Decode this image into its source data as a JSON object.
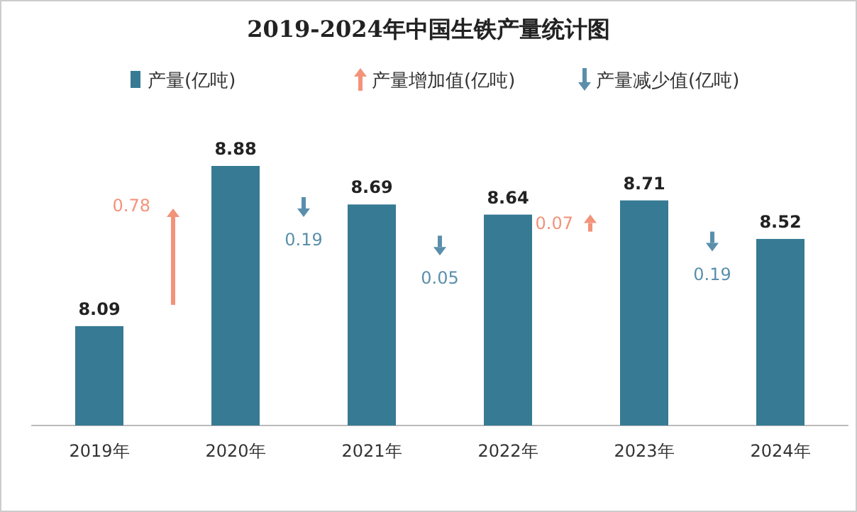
{
  "chart_data": {
    "type": "bar",
    "title": "2019-2024年中国生铁产量统计图",
    "categories": [
      "2019年",
      "2020年",
      "2021年",
      "2022年",
      "2023年",
      "2024年"
    ],
    "ylim": [
      7.6,
      8.88
    ],
    "grid": false,
    "legend": "top",
    "data_labels": true,
    "series": [
      {
        "name": "产量(亿吨)",
        "type": "bar",
        "color": "#377a94",
        "values": [
          8.09,
          8.88,
          8.69,
          8.64,
          8.71,
          8.52
        ]
      },
      {
        "name": "产量增加值(亿吨)",
        "type": "other",
        "color": "#f2937a",
        "values": [
          null,
          null,
          null,
          null,
          null,
          null
        ]
      },
      {
        "name": "产量减少值(亿吨)",
        "type": "other",
        "color": "#5a8fab",
        "values": [
          null,
          null,
          null,
          null,
          null,
          null
        ]
      }
    ],
    "annotations": [
      "0.78",
      "0.19",
      "0.05",
      "0.07",
      "0.19"
    ]
  }
}
